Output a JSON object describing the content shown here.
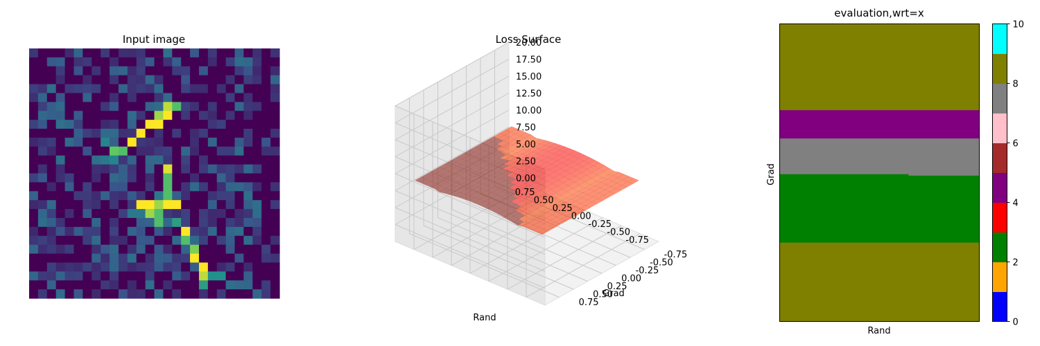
{
  "figure": {
    "background": "#ffffff"
  },
  "chart_data": [
    {
      "type": "heatmap",
      "title": "Input image",
      "colormap": "viridis",
      "grid": false,
      "axes_visible": false,
      "size": 28,
      "description_of_values": "values 0..1, mostly low noise with a bright diagonal stroke (like a handwritten digit)"
    },
    {
      "type": "surface",
      "title": "Loss Surface",
      "xlabel": "Rand",
      "ylabel": "Grad",
      "zlabel": "",
      "xticks": [
        "-0.75",
        "-0.50",
        "-0.25",
        "0.00",
        "0.25",
        "0.50",
        "0.75"
      ],
      "yticks": [
        "-0.75",
        "-0.50",
        "-0.25",
        "0.00",
        "0.25",
        "0.50",
        "0.75"
      ],
      "zticks": [
        "0.00",
        "2.50",
        "5.00",
        "7.50",
        "10.00",
        "12.50",
        "15.00",
        "17.50",
        "20.00"
      ],
      "xlim": [
        -0.75,
        0.75
      ],
      "ylim": [
        -0.75,
        0.75
      ],
      "zlim": [
        0,
        20
      ],
      "colormap": "jet",
      "grid": true
    },
    {
      "type": "heatmap",
      "title": "evaluation,wrt=x",
      "xlabel": "Rand",
      "ylabel": "Grad",
      "colorbar_ticks": [
        "0",
        "2",
        "4",
        "6",
        "8",
        "10"
      ],
      "colorbar_colors": [
        "#0000ff",
        "#ffa500",
        "#008000",
        "#ff0000",
        "#800080",
        "#a52a2a",
        "#ffc0cb",
        "#808080",
        "#808000",
        "#00ffff"
      ],
      "colorbar_range": [
        0,
        10
      ],
      "bands": [
        {
          "value": 8,
          "color": "#808000",
          "from": 0.0,
          "to": 0.29
        },
        {
          "value": 4,
          "color": "#800080",
          "from": 0.29,
          "to": 0.385
        },
        {
          "value": 7,
          "color": "#808080",
          "from": 0.385,
          "to": 0.51
        },
        {
          "value": 2,
          "color": "#008000",
          "from": 0.51,
          "to": 0.735
        },
        {
          "value": 8,
          "color": "#808000",
          "from": 0.735,
          "to": 1.0
        }
      ]
    }
  ]
}
